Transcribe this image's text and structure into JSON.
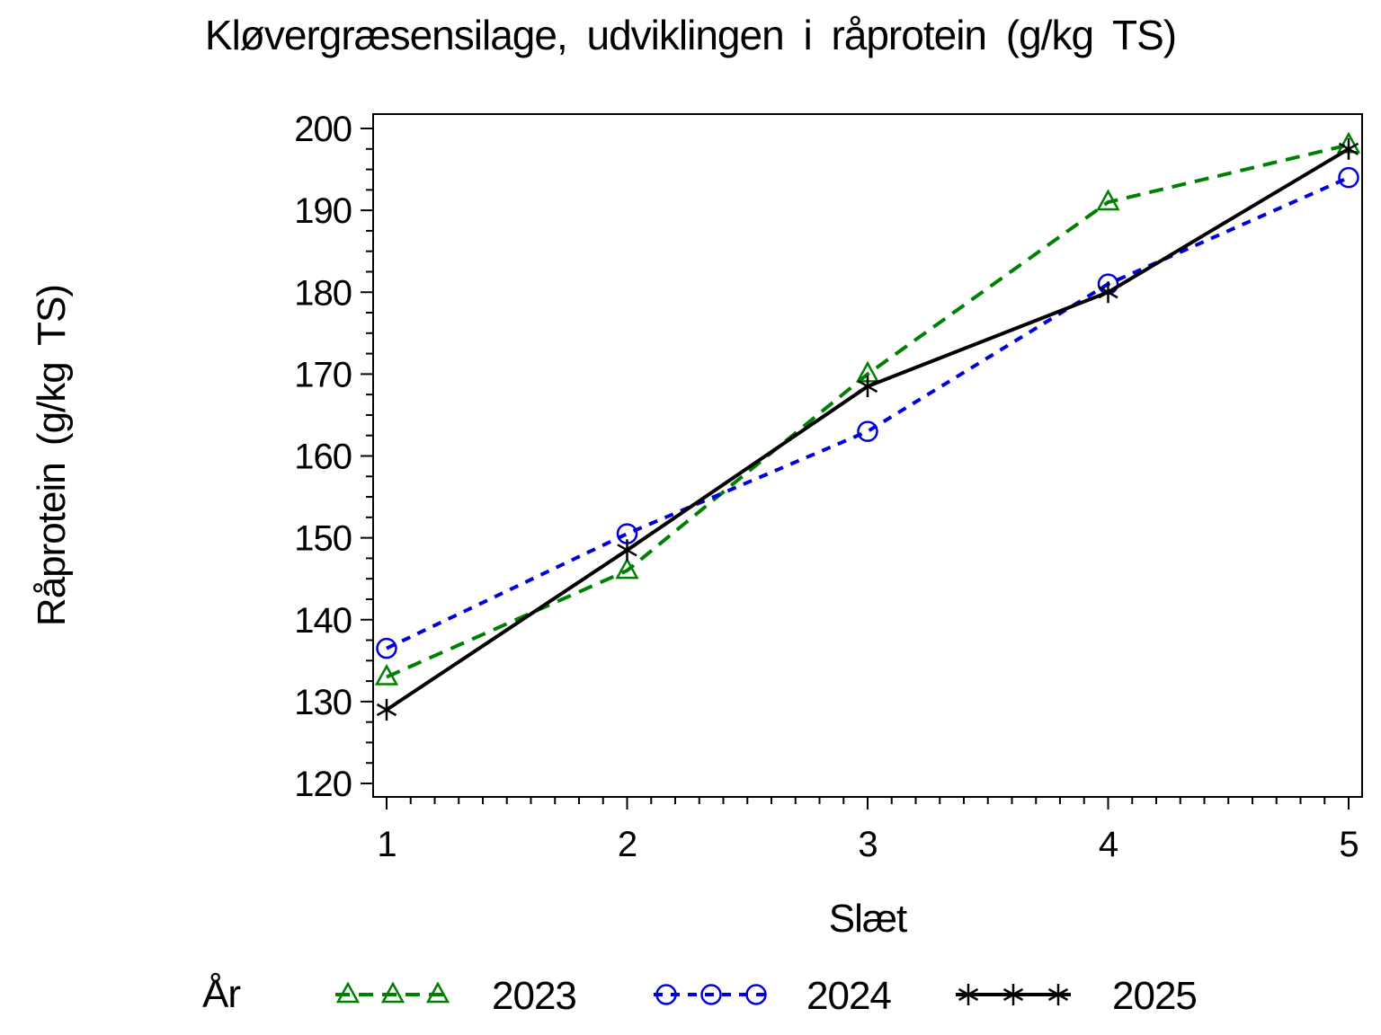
{
  "chart_data": {
    "type": "line",
    "title": "Kløvergræsensilage, udviklingen i råprotein (g/kg TS)",
    "xlabel": "Slæt",
    "ylabel": "Råprotein (g/kg TS)",
    "legend_title": "År",
    "legend_position": "bottom",
    "grid": "off",
    "x": [
      1,
      2,
      3,
      4,
      5
    ],
    "x_ticks": [
      "1",
      "2",
      "3",
      "4",
      "5"
    ],
    "y_ticks": [
      "120",
      "130",
      "140",
      "150",
      "160",
      "170",
      "180",
      "190",
      "200"
    ],
    "xlim": [
      1,
      5
    ],
    "ylim": [
      120,
      200
    ],
    "y_major_step": 10,
    "y_minor_step": 2.5,
    "x_minor_step": 0.1,
    "frame_color": "#000000",
    "series": [
      {
        "name": "2023",
        "color": "#008000",
        "line": "dashed",
        "dash": "16 10",
        "marker": "triangle",
        "values": [
          133,
          146,
          170,
          191,
          198
        ]
      },
      {
        "name": "2024",
        "color": "#0000DD",
        "line": "dashed",
        "dash": "10 9",
        "marker": "circle",
        "values": [
          136.5,
          150.5,
          163,
          181,
          194
        ]
      },
      {
        "name": "2025",
        "color": "#000000",
        "line": "solid",
        "dash": "",
        "marker": "star",
        "values": [
          129,
          148.5,
          168.5,
          180,
          197.5
        ]
      }
    ]
  }
}
